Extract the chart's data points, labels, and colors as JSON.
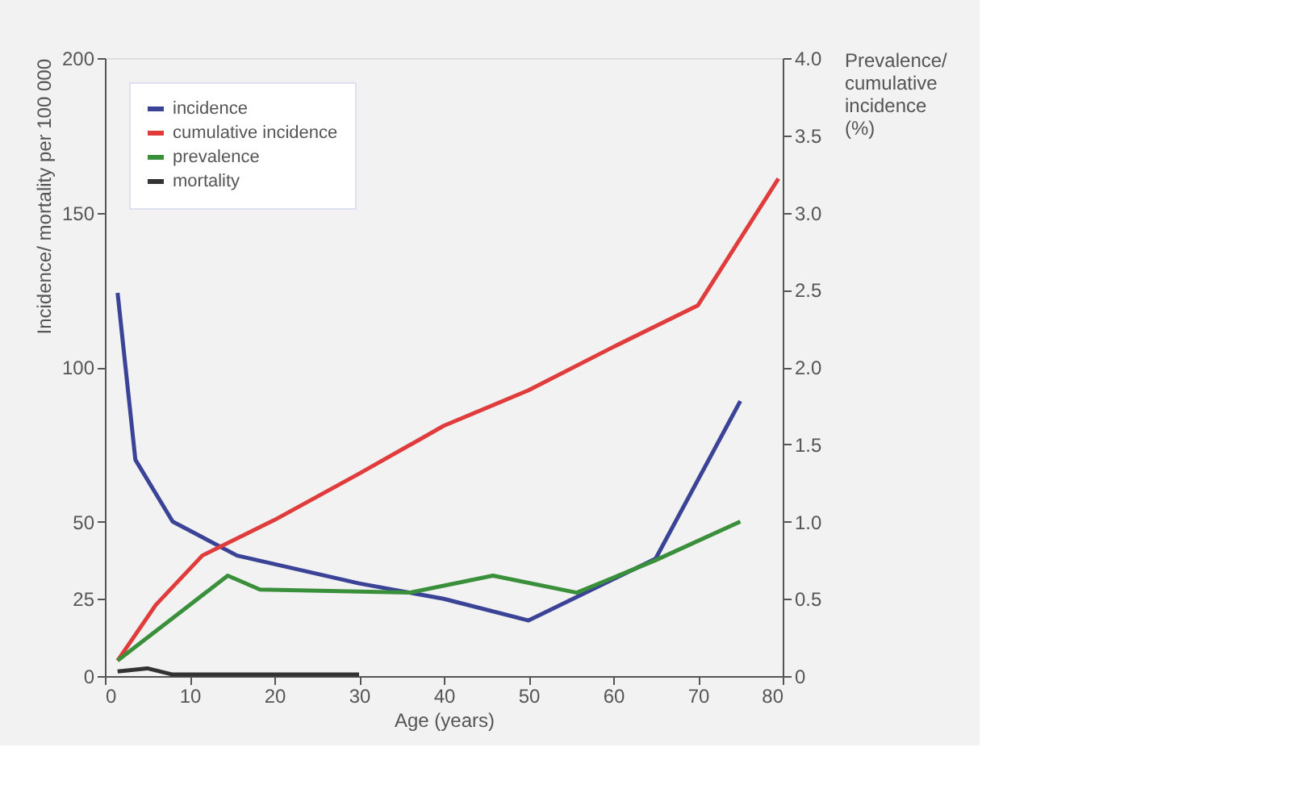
{
  "chart_data": {
    "type": "line",
    "xlabel": "Age (years)",
    "ylabel": "Incidence/ mortality per 100 000",
    "y2label": "Prevalence/ cumulative incidence (%)",
    "xlim": [
      0,
      80
    ],
    "xticks": [
      0,
      10,
      20,
      30,
      40,
      50,
      60,
      70,
      80
    ],
    "ylim": [
      0,
      200
    ],
    "yticks": [
      0,
      25,
      50,
      100,
      150,
      200
    ],
    "y2lim": [
      0,
      4
    ],
    "y2ticks": [
      0,
      0.5,
      {
        "value": 1,
        "label": "1.0"
      },
      1.5,
      {
        "value": 2,
        "label": "2.0"
      },
      2.5,
      {
        "value": 3,
        "label": "3.0"
      },
      3.5,
      {
        "value": 4,
        "label": "4.0"
      }
    ],
    "legend": "top left",
    "grid": false,
    "marker": "none",
    "line_style": "solid",
    "series": [
      {
        "name": "incidence",
        "color": "#3a4396",
        "x": [
          1.5,
          3.6,
          8,
          15.6,
          30,
          40,
          50,
          65,
          75
        ],
        "values": [
          124,
          70,
          50,
          39,
          30,
          25,
          18,
          38,
          89
        ]
      },
      {
        "name": "cumulative incidence",
        "color": "#e03c3c",
        "axis": "y2",
        "x": [
          1.5,
          6,
          11.5,
          20,
          30,
          40,
          50,
          60,
          70,
          79.5
        ],
        "values": [
          0.1,
          0.46,
          0.78,
          1.01,
          1.31,
          1.62,
          1.85,
          2.13,
          2.4,
          3.22
        ]
      },
      {
        "name": "prevalence",
        "color": "#3a8f3a",
        "axis": "y2",
        "x": [
          1.5,
          14.5,
          18.3,
          36,
          45.8,
          55.7,
          65,
          75
        ],
        "values": [
          0.1,
          0.65,
          0.56,
          0.54,
          0.65,
          0.54,
          0.75,
          1.0
        ]
      },
      {
        "name": "mortality",
        "color": "#333333",
        "x": [
          1.5,
          5,
          8,
          30
        ],
        "values": [
          1.5,
          2.5,
          0.5,
          0.5
        ]
      }
    ]
  }
}
